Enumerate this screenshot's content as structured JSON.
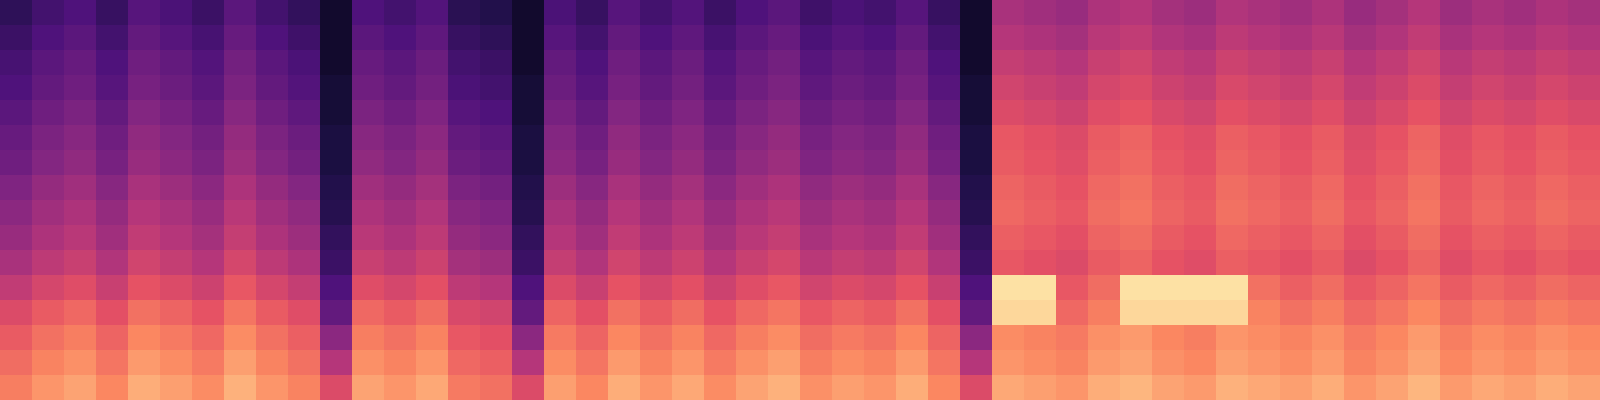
{
  "chart_data": {
    "type": "heatmap",
    "color": "magma",
    "tick_labels": false,
    "color_range": [
      0,
      100
    ],
    "cells": [
      [
        17,
        22,
        25,
        19,
        27,
        24,
        20,
        28,
        22,
        18,
        8,
        25,
        22,
        26,
        16,
        14,
        8,
        24,
        19,
        27,
        22,
        26,
        20,
        25,
        28,
        21,
        24,
        22,
        27,
        19,
        8,
        47,
        45,
        43,
        48,
        50,
        46,
        44,
        49,
        47,
        45,
        48,
        43,
        46,
        50,
        44,
        47,
        45,
        48,
        46
      ],
      [
        20,
        25,
        28,
        22,
        30,
        27,
        23,
        31,
        25,
        21,
        8,
        28,
        25,
        29,
        19,
        17,
        8,
        27,
        22,
        30,
        25,
        29,
        23,
        28,
        31,
        24,
        27,
        25,
        30,
        22,
        8,
        50,
        48,
        46,
        51,
        53,
        49,
        47,
        52,
        50,
        48,
        51,
        46,
        49,
        53,
        47,
        50,
        48,
        51,
        49
      ],
      [
        23,
        28,
        31,
        25,
        33,
        30,
        26,
        34,
        28,
        24,
        8,
        31,
        28,
        32,
        22,
        20,
        8,
        30,
        25,
        33,
        28,
        32,
        26,
        31,
        34,
        27,
        30,
        28,
        33,
        25,
        8,
        54,
        52,
        50,
        55,
        57,
        53,
        51,
        56,
        54,
        52,
        55,
        50,
        53,
        57,
        51,
        54,
        52,
        55,
        53
      ],
      [
        25,
        30,
        33,
        27,
        35,
        32,
        28,
        36,
        30,
        26,
        10,
        33,
        30,
        34,
        24,
        22,
        10,
        32,
        27,
        35,
        30,
        34,
        28,
        33,
        36,
        29,
        32,
        30,
        35,
        27,
        10,
        57,
        55,
        53,
        58,
        60,
        56,
        54,
        59,
        57,
        55,
        58,
        53,
        56,
        60,
        54,
        57,
        55,
        58,
        56
      ],
      [
        28,
        33,
        36,
        30,
        38,
        35,
        31,
        39,
        33,
        29,
        10,
        36,
        33,
        37,
        27,
        25,
        10,
        35,
        30,
        38,
        33,
        37,
        31,
        36,
        39,
        32,
        35,
        33,
        38,
        30,
        10,
        60,
        58,
        56,
        61,
        63,
        59,
        57,
        62,
        60,
        58,
        61,
        56,
        59,
        63,
        57,
        60,
        58,
        61,
        59
      ],
      [
        31,
        36,
        39,
        33,
        41,
        38,
        34,
        42,
        36,
        32,
        12,
        39,
        36,
        40,
        30,
        28,
        12,
        38,
        33,
        41,
        36,
        40,
        34,
        39,
        42,
        35,
        38,
        36,
        41,
        33,
        12,
        64,
        62,
        60,
        65,
        67,
        63,
        61,
        66,
        64,
        62,
        65,
        60,
        63,
        67,
        61,
        64,
        62,
        65,
        63
      ],
      [
        33,
        38,
        41,
        35,
        43,
        40,
        36,
        44,
        38,
        34,
        12,
        41,
        38,
        42,
        32,
        30,
        12,
        40,
        35,
        43,
        38,
        42,
        36,
        41,
        44,
        37,
        40,
        38,
        43,
        35,
        12,
        65,
        63,
        61,
        66,
        68,
        64,
        62,
        67,
        65,
        63,
        66,
        61,
        64,
        68,
        62,
        65,
        63,
        66,
        64
      ],
      [
        37,
        42,
        45,
        39,
        47,
        44,
        40,
        48,
        42,
        38,
        14,
        45,
        42,
        46,
        36,
        34,
        14,
        44,
        39,
        47,
        42,
        46,
        40,
        45,
        48,
        41,
        44,
        42,
        47,
        39,
        14,
        67,
        65,
        63,
        68,
        70,
        66,
        64,
        69,
        67,
        65,
        68,
        63,
        66,
        70,
        64,
        67,
        65,
        68,
        66
      ],
      [
        40,
        45,
        48,
        42,
        50,
        47,
        43,
        51,
        45,
        41,
        15,
        48,
        45,
        49,
        39,
        37,
        15,
        47,
        42,
        50,
        45,
        49,
        43,
        48,
        51,
        44,
        47,
        45,
        50,
        42,
        15,
        68,
        66,
        64,
        69,
        71,
        67,
        65,
        70,
        68,
        66,
        69,
        64,
        67,
        71,
        65,
        68,
        66,
        69,
        67
      ],
      [
        43,
        48,
        51,
        45,
        53,
        50,
        46,
        54,
        48,
        44,
        18,
        51,
        48,
        52,
        42,
        40,
        18,
        50,
        45,
        53,
        48,
        52,
        46,
        51,
        54,
        47,
        50,
        48,
        53,
        45,
        18,
        66,
        64,
        62,
        67,
        69,
        65,
        63,
        68,
        66,
        64,
        67,
        62,
        65,
        69,
        63,
        66,
        64,
        67,
        65
      ],
      [
        47,
        52,
        55,
        49,
        57,
        54,
        50,
        58,
        52,
        48,
        20,
        55,
        52,
        56,
        46,
        44,
        20,
        54,
        49,
        57,
        52,
        56,
        50,
        55,
        58,
        51,
        54,
        52,
        57,
        49,
        20,
        64,
        62,
        60,
        65,
        67,
        63,
        61,
        66,
        64,
        62,
        65,
        60,
        63,
        67,
        61,
        64,
        62,
        65,
        63
      ],
      [
        53,
        58,
        61,
        55,
        63,
        60,
        56,
        64,
        58,
        54,
        25,
        61,
        58,
        62,
        52,
        50,
        25,
        60,
        55,
        63,
        58,
        62,
        56,
        61,
        64,
        57,
        60,
        58,
        63,
        55,
        25,
        94,
        94,
        64,
        69,
        94,
        94,
        94,
        94,
        70,
        66,
        69,
        64,
        67,
        71,
        65,
        68,
        66,
        69,
        67
      ],
      [
        60,
        65,
        68,
        62,
        70,
        67,
        63,
        71,
        65,
        61,
        30,
        68,
        65,
        69,
        59,
        57,
        30,
        67,
        62,
        70,
        65,
        69,
        63,
        68,
        71,
        64,
        67,
        65,
        70,
        62,
        30,
        92,
        92,
        68,
        73,
        92,
        92,
        92,
        92,
        74,
        70,
        73,
        68,
        71,
        75,
        69,
        72,
        70,
        73,
        71
      ],
      [
        65,
        70,
        73,
        67,
        75,
        72,
        68,
        76,
        70,
        66,
        40,
        73,
        70,
        74,
        64,
        62,
        40,
        72,
        67,
        75,
        70,
        74,
        68,
        73,
        76,
        69,
        72,
        70,
        75,
        67,
        40,
        76,
        74,
        72,
        77,
        79,
        75,
        73,
        78,
        76,
        74,
        77,
        72,
        75,
        79,
        73,
        76,
        74,
        77,
        75
      ],
      [
        69,
        74,
        77,
        71,
        79,
        76,
        72,
        80,
        74,
        70,
        50,
        77,
        74,
        78,
        68,
        66,
        50,
        76,
        71,
        79,
        74,
        78,
        72,
        77,
        80,
        73,
        76,
        74,
        79,
        71,
        50,
        78,
        76,
        74,
        79,
        81,
        77,
        75,
        80,
        78,
        76,
        79,
        74,
        77,
        81,
        75,
        78,
        76,
        79,
        77
      ],
      [
        73,
        78,
        81,
        75,
        83,
        80,
        76,
        84,
        78,
        74,
        60,
        81,
        78,
        82,
        72,
        70,
        60,
        80,
        75,
        83,
        78,
        82,
        76,
        81,
        84,
        77,
        80,
        78,
        83,
        75,
        60,
        82,
        80,
        78,
        83,
        85,
        81,
        79,
        84,
        82,
        80,
        83,
        78,
        81,
        85,
        79,
        82,
        80,
        83,
        81
      ]
    ]
  }
}
